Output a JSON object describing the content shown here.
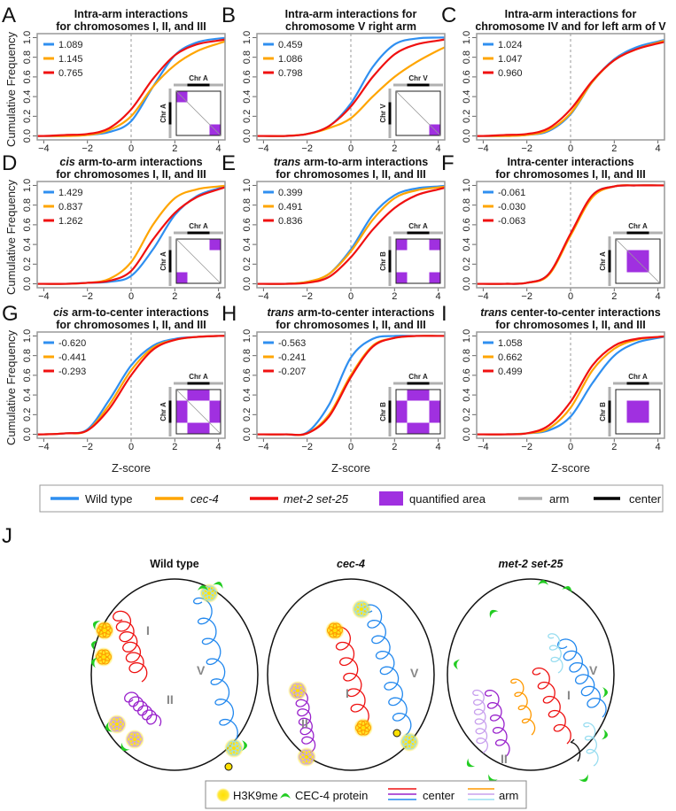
{
  "figure": {
    "y_axis_label": "Cumulative Frequency",
    "x_axis_label": "Z-score"
  },
  "colors": {
    "wild_type": "#2f8ff0",
    "cec4": "#ffa500",
    "met2": "#f01010",
    "quantified": "#a030e0",
    "arm": "#b0b0b0",
    "center": "#000000",
    "chr_b_label": "#22aa22"
  },
  "legend": {
    "wild_type": "Wild type",
    "cec4": "cec-4",
    "met2": "met-2 set-25",
    "quantified": "quantified area",
    "arm": "arm",
    "center": "center"
  },
  "chart_data": [
    {
      "panel": "A",
      "type": "line",
      "title_italic": "",
      "title_line1": "Intra-arm interactions",
      "title_line2": "for chromosomes I, II, and III",
      "xlim": [
        -4.3,
        4.3
      ],
      "ylim": [
        0,
        1
      ],
      "x_ticks": [
        "−4",
        "−2",
        "0",
        "2",
        "4"
      ],
      "x_tick_values": [
        -4,
        -2,
        0,
        2,
        4
      ],
      "y_ticks": [
        "0.0",
        "0.2",
        "0.4",
        "0.6",
        "0.8",
        "1.0"
      ],
      "grid": false,
      "vline_at": 0,
      "x": [
        -4,
        -3,
        -2,
        -1,
        0,
        1,
        2,
        3,
        4
      ],
      "series": [
        {
          "key": "wild_type",
          "legend_value": "1.089",
          "values": [
            0,
            0,
            0.01,
            0.04,
            0.15,
            0.5,
            0.82,
            0.95,
            0.99
          ]
        },
        {
          "key": "cec4",
          "legend_value": "1.145",
          "values": [
            0,
            0,
            0.01,
            0.06,
            0.2,
            0.5,
            0.72,
            0.86,
            0.94
          ]
        },
        {
          "key": "met2",
          "legend_value": "0.765",
          "values": [
            0,
            0.01,
            0.02,
            0.08,
            0.27,
            0.58,
            0.82,
            0.93,
            0.97
          ]
        }
      ],
      "inset": {
        "kind": "diag-corners",
        "top_label": "Chr A",
        "side_label": "Chr A",
        "side_label_color": "#000000"
      }
    },
    {
      "panel": "B",
      "type": "line",
      "title_italic": "",
      "title_line1": "Intra-arm interactions for",
      "title_line2": "chromosome V right arm",
      "xlim": [
        -4.3,
        4.3
      ],
      "ylim": [
        0,
        1
      ],
      "x_ticks": [
        "−4",
        "−2",
        "0",
        "2",
        "4"
      ],
      "x_tick_values": [
        -4,
        -2,
        0,
        2,
        4
      ],
      "y_ticks": [
        "0.0",
        "0.2",
        "0.4",
        "0.6",
        "0.8",
        "1.0"
      ],
      "grid": false,
      "vline_at": 0,
      "x": [
        -4,
        -3,
        -2,
        -1,
        0,
        1,
        2,
        3,
        4
      ],
      "series": [
        {
          "key": "wild_type",
          "legend_value": "0.459",
          "values": [
            0,
            0,
            0.02,
            0.1,
            0.33,
            0.7,
            0.93,
            0.99,
            1.0
          ]
        },
        {
          "key": "cec4",
          "legend_value": "1.086",
          "values": [
            0,
            0,
            0.02,
            0.08,
            0.18,
            0.4,
            0.6,
            0.75,
            0.87
          ]
        },
        {
          "key": "met2",
          "legend_value": "0.798",
          "values": [
            0,
            0,
            0.02,
            0.1,
            0.3,
            0.6,
            0.83,
            0.93,
            0.97
          ]
        }
      ],
      "inset": {
        "kind": "bottom-right",
        "top_label": "Chr V",
        "side_label": "Chr V",
        "side_label_color": "#000000"
      }
    },
    {
      "panel": "C",
      "type": "line",
      "title_italic": "",
      "title_line1": "Intra-arm interactions for",
      "title_line2": "chromosome IV and for left arm of V",
      "xlim": [
        -4.3,
        4.3
      ],
      "ylim": [
        0,
        1
      ],
      "x_ticks": [
        "−4",
        "−2",
        "0",
        "2",
        "4"
      ],
      "x_tick_values": [
        -4,
        -2,
        0,
        2,
        4
      ],
      "y_ticks": [
        "0.0",
        "0.2",
        "0.4",
        "0.6",
        "0.8",
        "1.0"
      ],
      "grid": false,
      "vline_at": 0,
      "x": [
        -4,
        -3,
        -2,
        -1,
        0,
        1,
        2,
        3,
        4
      ],
      "series": [
        {
          "key": "wild_type",
          "legend_value": "1.024",
          "values": [
            0,
            0,
            0.01,
            0.05,
            0.22,
            0.55,
            0.78,
            0.9,
            0.96
          ]
        },
        {
          "key": "cec4",
          "legend_value": "1.047",
          "values": [
            0,
            0,
            0.01,
            0.06,
            0.23,
            0.55,
            0.77,
            0.88,
            0.95
          ]
        },
        {
          "key": "met2",
          "legend_value": "0.960",
          "values": [
            0,
            0.01,
            0.02,
            0.08,
            0.27,
            0.56,
            0.77,
            0.88,
            0.94
          ]
        }
      ],
      "inset": null
    },
    {
      "panel": "D",
      "type": "line",
      "title_italic": "cis",
      "title_line1": " arm-to-arm interactions",
      "title_line2": "for chromosomes I, II, and III",
      "xlim": [
        -4.3,
        4.3
      ],
      "ylim": [
        0,
        1
      ],
      "x_ticks": [
        "−4",
        "−2",
        "0",
        "2",
        "4"
      ],
      "x_tick_values": [
        -4,
        -2,
        0,
        2,
        4
      ],
      "y_ticks": [
        "0.0",
        "0.2",
        "0.4",
        "0.6",
        "0.8",
        "1.0"
      ],
      "grid": false,
      "vline_at": 0,
      "x": [
        -4,
        -3,
        -2,
        -1,
        0,
        1,
        2,
        3,
        4
      ],
      "series": [
        {
          "key": "wild_type",
          "legend_value": "1.429",
          "values": [
            0,
            0,
            0.01,
            0.02,
            0.08,
            0.35,
            0.7,
            0.89,
            0.97
          ]
        },
        {
          "key": "cec4",
          "legend_value": "0.837",
          "values": [
            0,
            0,
            0.01,
            0.05,
            0.22,
            0.6,
            0.87,
            0.96,
            0.99
          ]
        },
        {
          "key": "met2",
          "legend_value": "1.262",
          "values": [
            0,
            0,
            0.01,
            0.03,
            0.13,
            0.45,
            0.72,
            0.88,
            0.96
          ]
        }
      ],
      "inset": {
        "kind": "offdiag-corners",
        "top_label": "Chr A",
        "side_label": "Chr A",
        "side_label_color": "#000000"
      }
    },
    {
      "panel": "E",
      "type": "line",
      "title_italic": "trans",
      "title_line1": " arm-to-arm interactions",
      "title_line2": "for chromosomes I, II, and III",
      "xlim": [
        -4.3,
        4.3
      ],
      "ylim": [
        0,
        1
      ],
      "x_ticks": [
        "−4",
        "−2",
        "0",
        "2",
        "4"
      ],
      "x_tick_values": [
        -4,
        -2,
        0,
        2,
        4
      ],
      "y_ticks": [
        "0.0",
        "0.2",
        "0.4",
        "0.6",
        "0.8",
        "1.0"
      ],
      "grid": false,
      "vline_at": 0,
      "x": [
        -4,
        -3,
        -2,
        -1,
        0,
        1,
        2,
        3,
        4
      ],
      "series": [
        {
          "key": "wild_type",
          "legend_value": "0.399",
          "values": [
            0,
            0,
            0.02,
            0.1,
            0.35,
            0.7,
            0.9,
            0.97,
            0.99
          ]
        },
        {
          "key": "cec4",
          "legend_value": "0.491",
          "values": [
            0,
            0,
            0.02,
            0.1,
            0.33,
            0.65,
            0.87,
            0.95,
            0.98
          ]
        },
        {
          "key": "met2",
          "legend_value": "0.836",
          "values": [
            0,
            0,
            0.01,
            0.07,
            0.27,
            0.55,
            0.77,
            0.9,
            0.96
          ]
        }
      ],
      "inset": {
        "kind": "four-corners",
        "top_label": "Chr A",
        "side_label": "Chr B",
        "side_label_color": "#22aa22"
      }
    },
    {
      "panel": "F",
      "type": "line",
      "title_italic": "",
      "title_line1": "Intra-center interactions",
      "title_line2": "for chromosomes I, II, and III",
      "xlim": [
        -4.3,
        4.3
      ],
      "ylim": [
        0,
        1
      ],
      "x_ticks": [
        "−4",
        "−2",
        "0",
        "2",
        "4"
      ],
      "x_tick_values": [
        -4,
        -2,
        0,
        2,
        4
      ],
      "y_ticks": [
        "0.0",
        "0.2",
        "0.4",
        "0.6",
        "0.8",
        "1.0"
      ],
      "grid": false,
      "vline_at": 0,
      "x": [
        -4,
        -3,
        -2,
        -1,
        0,
        1,
        2,
        3,
        4
      ],
      "series": [
        {
          "key": "wild_type",
          "legend_value": "-0.061",
          "values": [
            0,
            0,
            0.01,
            0.1,
            0.5,
            0.9,
            0.99,
            1,
            1
          ]
        },
        {
          "key": "cec4",
          "legend_value": "-0.030",
          "values": [
            0,
            0,
            0.01,
            0.09,
            0.49,
            0.88,
            0.99,
            1,
            1
          ]
        },
        {
          "key": "met2",
          "legend_value": "-0.063",
          "values": [
            0,
            0,
            0.01,
            0.1,
            0.51,
            0.9,
            0.99,
            1,
            1
          ]
        }
      ],
      "inset": {
        "kind": "center-diag",
        "top_label": "Chr A",
        "side_label": "Chr A",
        "side_label_color": "#000000"
      }
    },
    {
      "panel": "G",
      "type": "line",
      "title_italic": "cis",
      "title_line1": " arm-to-center interactions",
      "title_line2": "for chromosomes I, II, and III",
      "xlim": [
        -4.3,
        4.3
      ],
      "ylim": [
        0,
        1
      ],
      "x_ticks": [
        "−4",
        "−2",
        "0",
        "2",
        "4"
      ],
      "x_tick_values": [
        -4,
        -2,
        0,
        2,
        4
      ],
      "y_ticks": [
        "0.0",
        "0.2",
        "0.4",
        "0.6",
        "0.8",
        "1.0"
      ],
      "grid": false,
      "vline_at": 0,
      "x": [
        -4,
        -3,
        -2,
        -1,
        0,
        1,
        2,
        3,
        4
      ],
      "series": [
        {
          "key": "wild_type",
          "legend_value": "-0.620",
          "values": [
            0,
            0.01,
            0.05,
            0.35,
            0.7,
            0.9,
            0.97,
            0.99,
            1
          ]
        },
        {
          "key": "cec4",
          "legend_value": "-0.441",
          "values": [
            0,
            0.01,
            0.04,
            0.3,
            0.65,
            0.88,
            0.96,
            0.99,
            1
          ]
        },
        {
          "key": "met2",
          "legend_value": "-0.293",
          "values": [
            0,
            0.01,
            0.04,
            0.26,
            0.6,
            0.86,
            0.96,
            0.99,
            1
          ]
        }
      ],
      "inset": {
        "kind": "cross-diag",
        "top_label": "Chr A",
        "side_label": "Chr A",
        "side_label_color": "#000000"
      }
    },
    {
      "panel": "H",
      "type": "line",
      "title_italic": "trans",
      "title_line1": " arm-to-center interactions",
      "title_line2": "for chromosomes I, II, and III",
      "xlim": [
        -4.3,
        4.3
      ],
      "ylim": [
        0,
        1
      ],
      "x_ticks": [
        "−4",
        "−2",
        "0",
        "2",
        "4"
      ],
      "x_tick_values": [
        -4,
        -2,
        0,
        2,
        4
      ],
      "y_ticks": [
        "0.0",
        "0.2",
        "0.4",
        "0.6",
        "0.8",
        "1.0"
      ],
      "grid": false,
      "vline_at": 0,
      "x": [
        -4,
        -3,
        -2,
        -1,
        0,
        1,
        2,
        3,
        4
      ],
      "series": [
        {
          "key": "wild_type",
          "legend_value": "-0.563",
          "values": [
            0,
            0,
            0.02,
            0.3,
            0.78,
            0.97,
            1,
            1,
            1
          ]
        },
        {
          "key": "cec4",
          "legend_value": "-0.241",
          "values": [
            0,
            0,
            0.01,
            0.2,
            0.6,
            0.9,
            0.98,
            1,
            1
          ]
        },
        {
          "key": "met2",
          "legend_value": "-0.207",
          "values": [
            0,
            0,
            0.01,
            0.18,
            0.58,
            0.89,
            0.98,
            1,
            1
          ]
        }
      ],
      "inset": {
        "kind": "cross",
        "top_label": "Chr A",
        "side_label": "Chr B",
        "side_label_color": "#22aa22"
      }
    },
    {
      "panel": "I",
      "type": "line",
      "title_italic": "trans",
      "title_line1": " center-to-center interactions",
      "title_line2": "for chromosomes I, II, and III",
      "xlim": [
        -4.3,
        4.3
      ],
      "ylim": [
        0,
        1
      ],
      "x_ticks": [
        "−4",
        "−2",
        "0",
        "2",
        "4"
      ],
      "x_tick_values": [
        -4,
        -2,
        0,
        2,
        4
      ],
      "y_ticks": [
        "0.0",
        "0.2",
        "0.4",
        "0.6",
        "0.8",
        "1.0"
      ],
      "grid": false,
      "vline_at": 0,
      "x": [
        -4,
        -3,
        -2,
        -1,
        0,
        1,
        2,
        3,
        4
      ],
      "series": [
        {
          "key": "wild_type",
          "legend_value": "1.058",
          "values": [
            0,
            0,
            0.01,
            0.04,
            0.18,
            0.52,
            0.8,
            0.93,
            0.98
          ]
        },
        {
          "key": "cec4",
          "legend_value": "0.662",
          "values": [
            0,
            0,
            0.01,
            0.06,
            0.27,
            0.65,
            0.87,
            0.96,
            0.99
          ]
        },
        {
          "key": "met2",
          "legend_value": "0.499",
          "values": [
            0,
            0,
            0.01,
            0.09,
            0.33,
            0.7,
            0.9,
            0.97,
            0.99
          ]
        }
      ],
      "inset": {
        "kind": "center",
        "top_label": "Chr A",
        "side_label": "Chr B",
        "side_label_color": "#22aa22"
      }
    }
  ],
  "panel_j": {
    "letter": "J",
    "nuclei": [
      {
        "title": "Wild type",
        "italic": false
      },
      {
        "title": "cec-4",
        "italic": true
      },
      {
        "title": "met-2 set-25",
        "italic": true
      }
    ],
    "chromosome_labels": {
      "I": "I",
      "II": "II",
      "V": "V"
    },
    "colors": {
      "center_I": "#ee1111",
      "center_II": "#9922cc",
      "center_V": "#2288ee",
      "arm_I": "#ff9900",
      "arm_II": "#c8a0ee",
      "arm_V": "#99ddf0",
      "h3k9me": "#ffe000",
      "cec4_protein": "#22cc22"
    },
    "legend": {
      "h3k9me": "H3K9me",
      "cec4_protein": "CEC-4 protein",
      "center": "center",
      "arm": "arm"
    }
  }
}
